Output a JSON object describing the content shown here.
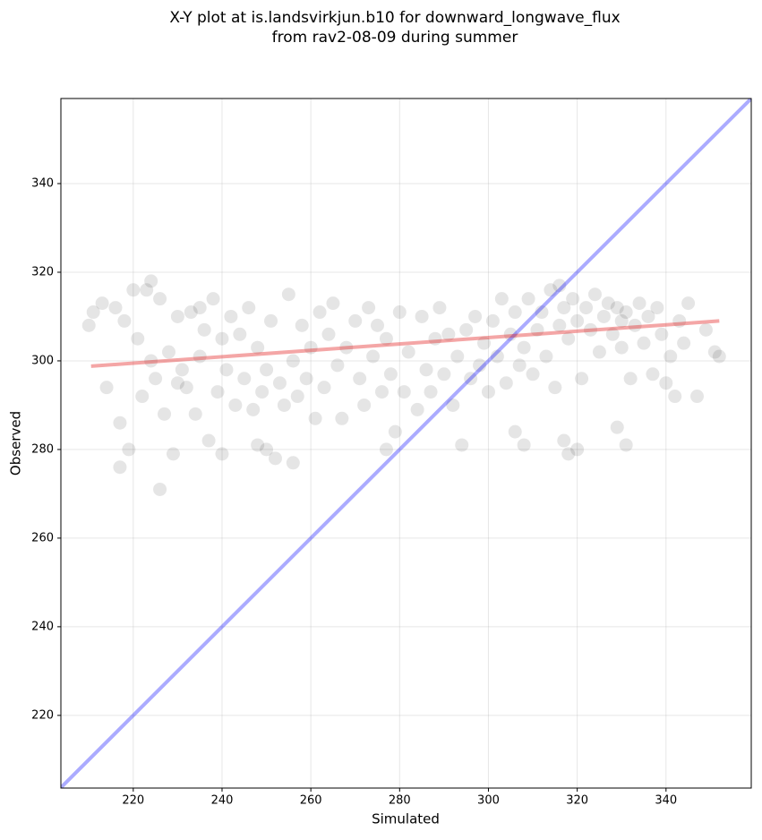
{
  "chart_data": {
    "type": "scatter",
    "title": [
      "X-Y plot at is.landsvirkjun.b10 for downward_longwave_flux",
      "from rav2-08-09 during summer"
    ],
    "xlabel": "Simulated",
    "ylabel": "Observed",
    "xlim": [
      203.7,
      359.2
    ],
    "ylim": [
      203.6,
      359.2
    ],
    "xticks": [
      220,
      240,
      260,
      280,
      300,
      320,
      340
    ],
    "yticks": [
      220,
      240,
      260,
      280,
      300,
      320,
      340
    ],
    "grid": true,
    "series": [
      {
        "color": "#000000",
        "x": [
          210,
          211,
          213,
          214,
          216,
          217,
          217,
          218,
          219,
          220,
          221,
          222,
          223,
          224,
          224,
          225,
          226,
          226,
          227,
          228,
          229,
          230,
          230,
          231,
          232,
          233,
          234,
          235,
          235,
          236,
          237,
          238,
          239,
          240,
          240,
          241,
          242,
          243,
          244,
          245,
          246,
          247,
          248,
          248,
          249,
          250,
          250,
          251,
          252,
          253,
          254,
          255,
          256,
          256,
          257,
          258,
          259,
          260,
          261,
          262,
          263,
          264,
          265,
          266,
          267,
          268,
          270,
          271,
          272,
          273,
          274,
          275,
          276,
          277,
          277,
          278,
          279,
          280,
          281,
          282,
          284,
          285,
          286,
          287,
          288,
          289,
          290,
          291,
          292,
          293,
          294,
          295,
          296,
          297,
          298,
          299,
          300,
          301,
          302,
          303,
          304,
          305,
          306,
          306,
          307,
          308,
          308,
          309,
          310,
          311,
          312,
          313,
          314,
          315,
          316,
          316,
          317,
          317,
          318,
          318,
          319,
          320,
          320,
          321,
          322,
          323,
          324,
          325,
          326,
          327,
          328,
          329,
          329,
          330,
          330,
          331,
          331,
          332,
          333,
          334,
          335,
          336,
          337,
          338,
          339,
          340,
          341,
          342,
          343,
          344,
          345,
          347,
          349,
          351,
          352
        ],
        "y": [
          308,
          311,
          313,
          294,
          312,
          286,
          276,
          309,
          280,
          316,
          305,
          292,
          316,
          318,
          300,
          296,
          271,
          314,
          288,
          302,
          279,
          295,
          310,
          298,
          294,
          311,
          288,
          312,
          301,
          307,
          282,
          314,
          293,
          279,
          305,
          298,
          310,
          290,
          306,
          296,
          312,
          289,
          281,
          303,
          293,
          280,
          298,
          309,
          278,
          295,
          290,
          315,
          277,
          300,
          292,
          308,
          296,
          303,
          287,
          311,
          294,
          306,
          313,
          299,
          287,
          303,
          309,
          296,
          290,
          312,
          301,
          308,
          293,
          280,
          305,
          297,
          284,
          311,
          293,
          302,
          289,
          310,
          298,
          293,
          305,
          312,
          297,
          306,
          290,
          301,
          281,
          307,
          296,
          310,
          299,
          304,
          293,
          309,
          301,
          314,
          295,
          306,
          284,
          311,
          299,
          281,
          303,
          314,
          297,
          307,
          311,
          301,
          316,
          294,
          317,
          308,
          282,
          312,
          279,
          305,
          314,
          280,
          309,
          296,
          312,
          307,
          315,
          302,
          310,
          313,
          306,
          285,
          312,
          309,
          303,
          281,
          311,
          296,
          308,
          313,
          304,
          310,
          297,
          312,
          306,
          295,
          301,
          292,
          309,
          304,
          313,
          292,
          307,
          302,
          301
        ]
      }
    ],
    "identity_line": {
      "x": [
        203.7,
        359.2
      ],
      "y": [
        203.7,
        359.2
      ],
      "color": "#0000ff"
    },
    "fit_line": {
      "x": [
        210.5,
        352
      ],
      "y": [
        298.8,
        309
      ],
      "color": "#e32020"
    }
  }
}
